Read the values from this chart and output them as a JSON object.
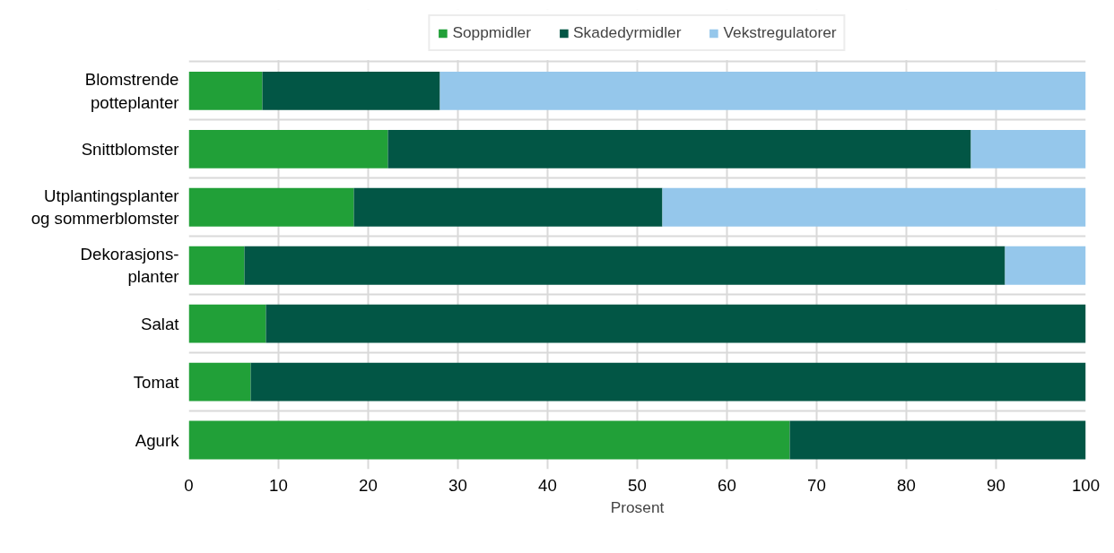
{
  "chart_data": {
    "type": "bar",
    "orientation": "horizontal",
    "stacked": true,
    "categories": [
      "Blomstrende\npotteplanter",
      "Snittblomster",
      "Utplantingsplanter\nog sommerblomster",
      "Dekorasjons-\nplanter",
      "Salat",
      "Tomat",
      "Agurk"
    ],
    "series": [
      {
        "name": "Soppmidler",
        "color": "#21a038",
        "values": [
          8.2,
          22.2,
          18.4,
          6.2,
          8.6,
          6.9,
          67
        ]
      },
      {
        "name": "Skadedyrmidler",
        "color": "#025645",
        "values": [
          19.8,
          65,
          34.4,
          84.8,
          91.4,
          93.1,
          33
        ]
      },
      {
        "name": "Vekstregulatorer",
        "color": "#95c7eb",
        "values": [
          72,
          12.8,
          47.2,
          9,
          0,
          0,
          0
        ]
      }
    ],
    "xlabel": "Prosent",
    "xlim": [
      0,
      100
    ],
    "xticks": [
      0,
      10,
      20,
      30,
      40,
      50,
      60,
      70,
      80,
      90,
      100
    ],
    "grid": true,
    "legend": "top"
  }
}
